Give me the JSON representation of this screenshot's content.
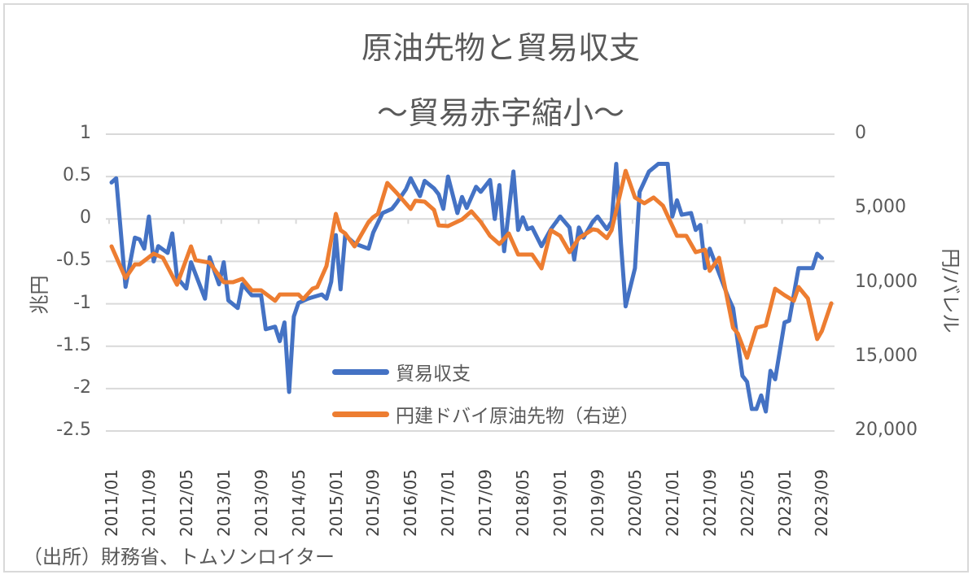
{
  "chart_data": {
    "type": "line",
    "title": "原油先物と貿易収支",
    "subtitle": "～貿易赤字縮小～",
    "ylabel": "兆円",
    "y2label": "円/バレル",
    "ylim": [
      -2.5,
      1
    ],
    "y2lim": [
      20000,
      0
    ],
    "y2_reversed": true,
    "yticks": [
      "1",
      "0.5",
      "0",
      "-0.5",
      "-1",
      "-1.5",
      "-2",
      "-2.5"
    ],
    "y2ticks": [
      "0",
      "5,000",
      "10,000",
      "15,000",
      "20,000"
    ],
    "xticks": [
      "2011/01",
      "2011/09",
      "2012/05",
      "2013/01",
      "2013/09",
      "2014/05",
      "2015/01",
      "2015/09",
      "2016/05",
      "2017/01",
      "2017/09",
      "2018/05",
      "2019/01",
      "2019/09",
      "2020/05",
      "2021/01",
      "2021/09",
      "2022/05",
      "2023/01",
      "2023/09"
    ],
    "grid": true,
    "legend_position": "center-bottom",
    "source": "（出所）財務省、トムソンロイター",
    "series": [
      {
        "name": "貿易収支",
        "axis": "left",
        "color": "#4472c4",
        "points": [
          [
            "2011/01",
            0.43
          ],
          [
            "2011/02",
            0.48
          ],
          [
            "2011/04",
            -0.8
          ],
          [
            "2011/06",
            -0.22
          ],
          [
            "2011/07",
            -0.24
          ],
          [
            "2011/08",
            -0.35
          ],
          [
            "2011/09",
            0.03
          ],
          [
            "2011/10",
            -0.5
          ],
          [
            "2011/11",
            -0.32
          ],
          [
            "2012/01",
            -0.4
          ],
          [
            "2012/02",
            -0.17
          ],
          [
            "2012/03",
            -0.69
          ],
          [
            "2012/05",
            -0.82
          ],
          [
            "2012/06",
            -0.51
          ],
          [
            "2012/09",
            -0.94
          ],
          [
            "2012/10",
            -0.45
          ],
          [
            "2012/12",
            -0.77
          ],
          [
            "2013/01",
            -0.51
          ],
          [
            "2013/02",
            -0.96
          ],
          [
            "2013/04",
            -1.05
          ],
          [
            "2013/05",
            -0.77
          ],
          [
            "2013/07",
            -0.9
          ],
          [
            "2013/09",
            -0.9
          ],
          [
            "2013/10",
            -1.3
          ],
          [
            "2013/12",
            -1.27
          ],
          [
            "2014/01",
            -1.44
          ],
          [
            "2014/02",
            -1.22
          ],
          [
            "2014/03",
            -2.04
          ],
          [
            "2014/04",
            -1.15
          ],
          [
            "2014/05",
            -0.99
          ],
          [
            "2014/07",
            -0.94
          ],
          [
            "2014/10",
            -0.89
          ],
          [
            "2014/11",
            -0.94
          ],
          [
            "2014/12",
            -0.74
          ],
          [
            "2015/01",
            -0.19
          ],
          [
            "2015/02",
            -0.83
          ],
          [
            "2015/03",
            -0.19
          ],
          [
            "2015/05",
            -0.29
          ],
          [
            "2015/08",
            -0.35
          ],
          [
            "2015/09",
            -0.16
          ],
          [
            "2015/11",
            0.07
          ],
          [
            "2016/01",
            0.12
          ],
          [
            "2016/02",
            0.19
          ],
          [
            "2016/04",
            0.35
          ],
          [
            "2016/05",
            0.48
          ],
          [
            "2016/07",
            0.27
          ],
          [
            "2016/08",
            0.45
          ],
          [
            "2016/10",
            0.36
          ],
          [
            "2016/11",
            0.29
          ],
          [
            "2016/12",
            0.12
          ],
          [
            "2017/01",
            0.5
          ],
          [
            "2017/03",
            0.07
          ],
          [
            "2017/04",
            0.26
          ],
          [
            "2017/05",
            0.13
          ],
          [
            "2017/07",
            0.38
          ],
          [
            "2017/08",
            0.32
          ],
          [
            "2017/10",
            0.46
          ],
          [
            "2017/11",
            0.0
          ],
          [
            "2017/12",
            0.4
          ],
          [
            "2018/01",
            -0.38
          ],
          [
            "2018/03",
            0.56
          ],
          [
            "2018/04",
            -0.13
          ],
          [
            "2018/05",
            0.02
          ],
          [
            "2018/06",
            -0.12
          ],
          [
            "2018/07",
            -0.1
          ],
          [
            "2018/09",
            -0.32
          ],
          [
            "2018/11",
            -0.12
          ],
          [
            "2019/01",
            0.03
          ],
          [
            "2019/03",
            -0.1
          ],
          [
            "2019/04",
            -0.48
          ],
          [
            "2019/05",
            -0.1
          ],
          [
            "2019/06",
            -0.22
          ],
          [
            "2019/08",
            -0.03
          ],
          [
            "2019/09",
            0.03
          ],
          [
            "2019/11",
            -0.12
          ],
          [
            "2019/12",
            -0.03
          ],
          [
            "2020/01",
            0.65
          ],
          [
            "2020/02",
            -0.29
          ],
          [
            "2020/03",
            -1.03
          ],
          [
            "2020/05",
            -0.58
          ],
          [
            "2020/06",
            0.32
          ],
          [
            "2020/08",
            0.56
          ],
          [
            "2020/10",
            0.65
          ],
          [
            "2020/12",
            0.65
          ],
          [
            "2021/01",
            0.03
          ],
          [
            "2021/02",
            0.22
          ],
          [
            "2021/03",
            0.05
          ],
          [
            "2021/05",
            0.07
          ],
          [
            "2021/06",
            -0.13
          ],
          [
            "2021/07",
            -0.07
          ],
          [
            "2021/08",
            -0.58
          ],
          [
            "2021/09",
            -0.35
          ],
          [
            "2021/11",
            -0.64
          ],
          [
            "2022/01",
            -0.93
          ],
          [
            "2022/02",
            -1.05
          ],
          [
            "2022/04",
            -1.85
          ],
          [
            "2022/05",
            -1.92
          ],
          [
            "2022/06",
            -2.24
          ],
          [
            "2022/07",
            -2.24
          ],
          [
            "2022/08",
            -2.08
          ],
          [
            "2022/09",
            -2.27
          ],
          [
            "2022/10",
            -1.79
          ],
          [
            "2022/11",
            -1.89
          ],
          [
            "2023/01",
            -1.22
          ],
          [
            "2023/02",
            -1.2
          ],
          [
            "2023/04",
            -0.58
          ],
          [
            "2023/07",
            -0.58
          ],
          [
            "2023/08",
            -0.41
          ],
          [
            "2023/09",
            -0.46
          ]
        ]
      },
      {
        "name": "円建ドバイ原油先物（右逆）",
        "axis": "right",
        "color": "#ed7d31",
        "points": [
          [
            "2011/01",
            7560
          ],
          [
            "2011/04",
            9700
          ],
          [
            "2011/06",
            8770
          ],
          [
            "2011/07",
            8770
          ],
          [
            "2011/10",
            8050
          ],
          [
            "2011/12",
            8330
          ],
          [
            "2012/03",
            10140
          ],
          [
            "2012/06",
            7560
          ],
          [
            "2012/07",
            8490
          ],
          [
            "2012/10",
            8660
          ],
          [
            "2013/01",
            9970
          ],
          [
            "2013/03",
            9970
          ],
          [
            "2013/05",
            9750
          ],
          [
            "2013/07",
            10520
          ],
          [
            "2013/09",
            10520
          ],
          [
            "2013/12",
            11230
          ],
          [
            "2014/01",
            10800
          ],
          [
            "2014/05",
            10800
          ],
          [
            "2014/06",
            11120
          ],
          [
            "2014/08",
            10410
          ],
          [
            "2014/09",
            10300
          ],
          [
            "2014/11",
            8880
          ],
          [
            "2015/01",
            5370
          ],
          [
            "2015/02",
            6470
          ],
          [
            "2015/03",
            6690
          ],
          [
            "2015/05",
            7560
          ],
          [
            "2015/08",
            5920
          ],
          [
            "2015/09",
            5590
          ],
          [
            "2015/10",
            5370
          ],
          [
            "2015/12",
            3290
          ],
          [
            "2016/02",
            3950
          ],
          [
            "2016/05",
            5040
          ],
          [
            "2016/06",
            4490
          ],
          [
            "2016/08",
            4550
          ],
          [
            "2016/10",
            5100
          ],
          [
            "2016/11",
            6140
          ],
          [
            "2017/01",
            6190
          ],
          [
            "2017/04",
            5750
          ],
          [
            "2017/06",
            5200
          ],
          [
            "2017/08",
            5920
          ],
          [
            "2017/10",
            6850
          ],
          [
            "2017/12",
            7400
          ],
          [
            "2018/02",
            6690
          ],
          [
            "2018/04",
            8110
          ],
          [
            "2018/07",
            8110
          ],
          [
            "2018/09",
            9040
          ],
          [
            "2018/11",
            6470
          ],
          [
            "2019/01",
            6850
          ],
          [
            "2019/03",
            7950
          ],
          [
            "2019/05",
            7010
          ],
          [
            "2019/08",
            6410
          ],
          [
            "2019/09",
            6470
          ],
          [
            "2019/11",
            7010
          ],
          [
            "2019/12",
            6470
          ],
          [
            "2020/03",
            2470
          ],
          [
            "2020/05",
            4270
          ],
          [
            "2020/07",
            4660
          ],
          [
            "2020/09",
            4270
          ],
          [
            "2020/11",
            4820
          ],
          [
            "2021/02",
            6850
          ],
          [
            "2021/04",
            6850
          ],
          [
            "2021/06",
            7950
          ],
          [
            "2021/08",
            7780
          ],
          [
            "2021/09",
            9210
          ],
          [
            "2021/11",
            8330
          ],
          [
            "2022/02",
            13040
          ],
          [
            "2022/03",
            13430
          ],
          [
            "2022/05",
            15070
          ],
          [
            "2022/07",
            13040
          ],
          [
            "2022/09",
            12880
          ],
          [
            "2022/11",
            10410
          ],
          [
            "2023/01",
            10850
          ],
          [
            "2023/03",
            11230
          ],
          [
            "2023/04",
            10300
          ],
          [
            "2023/06",
            11070
          ],
          [
            "2023/08",
            13810
          ],
          [
            "2023/09",
            13260
          ],
          [
            "2023/11",
            11400
          ]
        ]
      }
    ]
  }
}
